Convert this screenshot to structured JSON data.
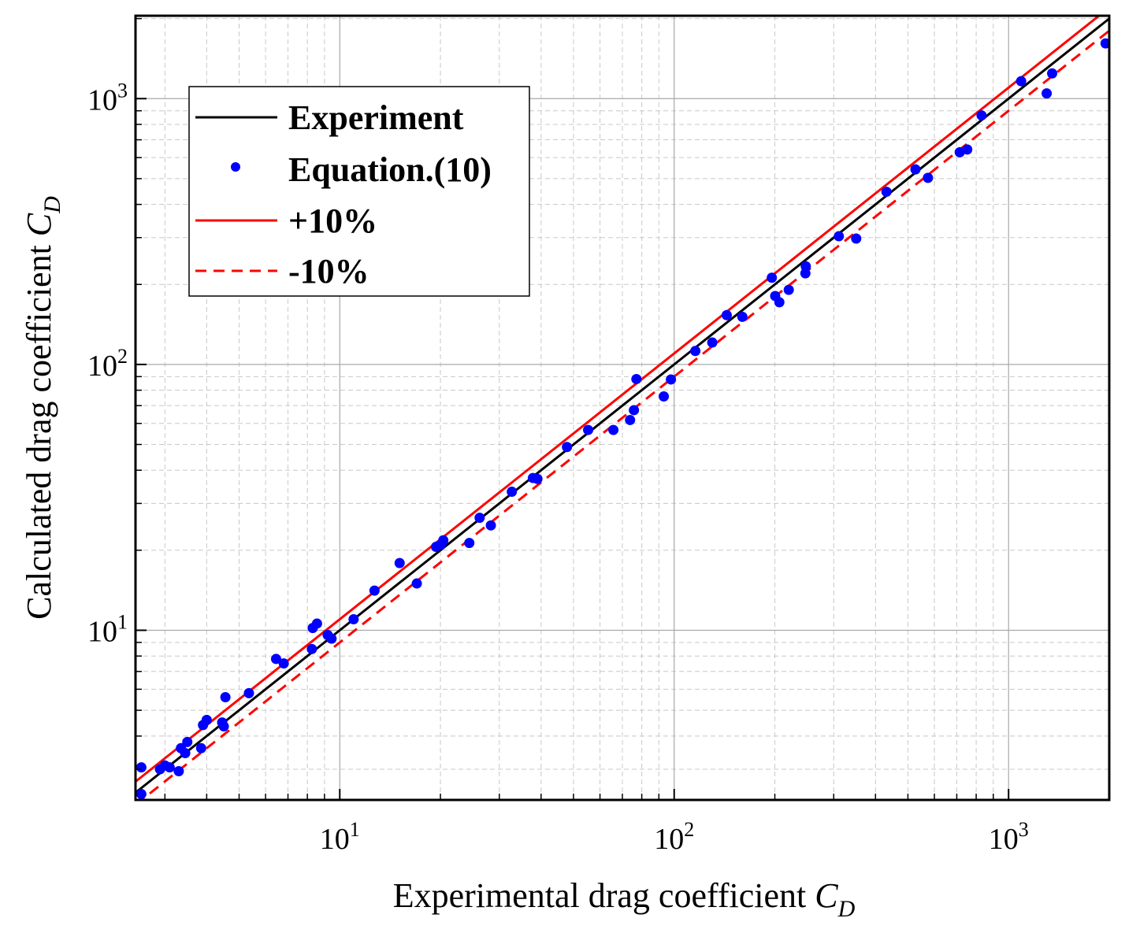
{
  "chart_data": {
    "type": "scatter",
    "xscale": "log",
    "yscale": "log",
    "xlim": [
      2.45,
      2000
    ],
    "ylim": [
      2.3,
      2050
    ],
    "xlabel_main": "Experimental drag coefficient ",
    "xlabel_sym": "C",
    "xlabel_sub": "D",
    "ylabel_main": "Calculated drag coefficient ",
    "ylabel_sym": "C",
    "ylabel_sub": "D",
    "x_ticks": [
      {
        "base": "10",
        "exp": "1",
        "value": 10
      },
      {
        "base": "10",
        "exp": "2",
        "value": 100
      },
      {
        "base": "10",
        "exp": "3",
        "value": 1000
      }
    ],
    "y_ticks": [
      {
        "base": "10",
        "exp": "1",
        "value": 10
      },
      {
        "base": "10",
        "exp": "2",
        "value": 100
      },
      {
        "base": "10",
        "exp": "3",
        "value": 1000
      }
    ],
    "grid": true,
    "legend_position": "top-left",
    "legend": [
      "Experiment",
      "Equation.(10)",
      "+10%",
      "-10%"
    ],
    "series": [
      {
        "name": "Experiment",
        "type": "line",
        "color": "#000000",
        "style": "solid",
        "x": [
          2.45,
          2000
        ],
        "y": [
          2.45,
          2000
        ]
      },
      {
        "name": "Equation.(10)",
        "type": "scatter",
        "color": "#0000ff",
        "points": [
          [
            2.55,
            3.05
          ],
          [
            2.55,
            2.42
          ],
          [
            2.9,
            3.0
          ],
          [
            3.0,
            3.1
          ],
          [
            3.1,
            3.05
          ],
          [
            3.3,
            2.95
          ],
          [
            3.35,
            3.6
          ],
          [
            3.45,
            3.45
          ],
          [
            3.5,
            3.8
          ],
          [
            3.85,
            3.6
          ],
          [
            3.9,
            4.4
          ],
          [
            4.0,
            4.6
          ],
          [
            4.45,
            4.5
          ],
          [
            4.5,
            4.35
          ],
          [
            4.55,
            5.6
          ],
          [
            5.35,
            5.8
          ],
          [
            6.45,
            7.8
          ],
          [
            6.8,
            7.5
          ],
          [
            8.25,
            8.5
          ],
          [
            8.3,
            10.2
          ],
          [
            8.55,
            10.6
          ],
          [
            9.2,
            9.6
          ],
          [
            9.45,
            9.3
          ],
          [
            11.0,
            11.0
          ],
          [
            12.7,
            14.1
          ],
          [
            15.1,
            17.9
          ],
          [
            17.0,
            15.0
          ],
          [
            19.4,
            20.6
          ],
          [
            20.1,
            21.0
          ],
          [
            20.4,
            21.8
          ],
          [
            24.4,
            21.3
          ],
          [
            26.2,
            26.5
          ],
          [
            28.3,
            24.8
          ],
          [
            32.7,
            33.2
          ],
          [
            37.8,
            37.4
          ],
          [
            39.0,
            37.1
          ],
          [
            47.8,
            48.9
          ],
          [
            55.3,
            56.7
          ],
          [
            65.8,
            56.7
          ],
          [
            73.8,
            61.8
          ],
          [
            75.8,
            67.3
          ],
          [
            77.1,
            88.1
          ],
          [
            93.1,
            75.8
          ],
          [
            97.8,
            87.8
          ],
          [
            115.7,
            112.4
          ],
          [
            130.0,
            120.9
          ],
          [
            143.6,
            153.3
          ],
          [
            159.9,
            151.1
          ],
          [
            195.9,
            211.9
          ],
          [
            200.5,
            180.9
          ],
          [
            206.3,
            171.4
          ],
          [
            220.1,
            190.8
          ],
          [
            246.8,
            220.2
          ],
          [
            247.5,
            234.0
          ],
          [
            310.8,
            303.6
          ],
          [
            350.2,
            297.6
          ],
          [
            431.4,
            446.2
          ],
          [
            526.8,
            541.8
          ],
          [
            574.0,
            503.5
          ],
          [
            714.4,
            628.5
          ],
          [
            752.2,
            643.5
          ],
          [
            830.3,
            864.7
          ],
          [
            1090.3,
            1162.7
          ],
          [
            1300.0,
            1046.3
          ],
          [
            1350.0,
            1243.7
          ],
          [
            1950.0,
            1613.1
          ]
        ]
      },
      {
        "name": "+10%",
        "type": "line",
        "color": "#ff0000",
        "style": "solid",
        "x": [
          2.45,
          2000
        ],
        "y": [
          2.695,
          2200
        ]
      },
      {
        "name": "-10%",
        "type": "line",
        "color": "#ff0000",
        "style": "dashed",
        "x": [
          2.45,
          2000
        ],
        "y": [
          2.205,
          1800
        ]
      }
    ]
  }
}
